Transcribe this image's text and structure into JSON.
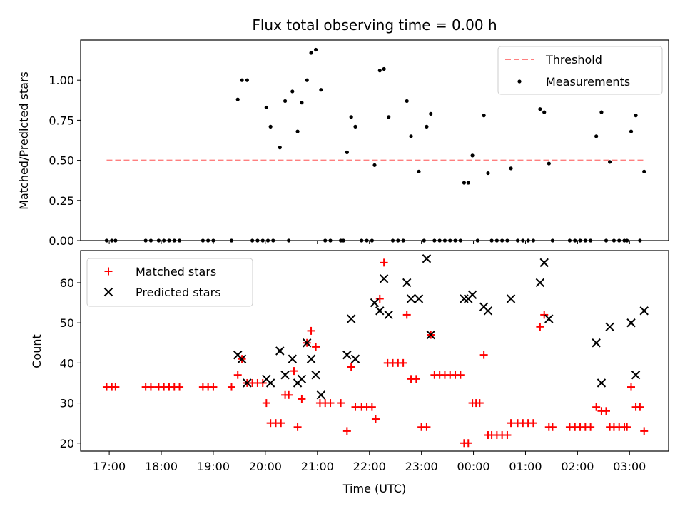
{
  "title": "Flux total observing time = 0.00 h",
  "top_ylabel": "Matched/Predicted stars",
  "bottom_ylabel": "Count",
  "xlabel": "Time (UTC)",
  "legend_top": {
    "threshold": "Threshold",
    "measurements": "Measurements"
  },
  "legend_bottom": {
    "matched": "Matched stars",
    "predicted": "Predicted stars"
  },
  "colors": {
    "threshold": "#ff7f7f",
    "measurements": "#000000",
    "matched": "#ff0000",
    "predicted": "#000000"
  },
  "chart_data": [
    {
      "type": "scatter",
      "panel": "top",
      "x_unit": "hours after 17:00 UTC",
      "xlim": [
        -0.55,
        10.75
      ],
      "ylim": [
        0,
        1.25
      ],
      "x_ticks": [
        0,
        1,
        2,
        3,
        4,
        5,
        6,
        7,
        8,
        9,
        10
      ],
      "x_tick_labels": [
        "17:00",
        "18:00",
        "19:00",
        "20:00",
        "21:00",
        "22:00",
        "23:00",
        "00:00",
        "01:00",
        "02:00",
        "03:00"
      ],
      "y_ticks": [
        0,
        0.25,
        0.5,
        0.75,
        1.0
      ],
      "y_tick_labels": [
        "0.00",
        "0.25",
        "0.50",
        "0.75",
        "1.00"
      ],
      "threshold": {
        "y": 0.5,
        "x_range": [
          -0.05,
          10.27
        ]
      },
      "series": [
        {
          "name": "Measurements",
          "points": [
            [
              -0.05,
              0
            ],
            [
              0.05,
              0
            ],
            [
              0.12,
              0
            ],
            [
              0.7,
              0
            ],
            [
              0.8,
              0
            ],
            [
              0.95,
              0
            ],
            [
              1.05,
              0
            ],
            [
              1.15,
              0
            ],
            [
              1.25,
              0
            ],
            [
              1.35,
              0
            ],
            [
              1.8,
              0
            ],
            [
              1.9,
              0
            ],
            [
              2.0,
              0
            ],
            [
              2.35,
              0
            ],
            [
              2.47,
              0.88
            ],
            [
              2.55,
              1.0
            ],
            [
              2.65,
              1.0
            ],
            [
              2.75,
              0
            ],
            [
              2.85,
              0
            ],
            [
              2.95,
              0
            ],
            [
              3.05,
              0
            ],
            [
              3.15,
              0
            ],
            [
              3.02,
              0.83
            ],
            [
              3.1,
              0.71
            ],
            [
              3.28,
              0.58
            ],
            [
              3.38,
              0.87
            ],
            [
              3.45,
              0
            ],
            [
              3.52,
              0.93
            ],
            [
              3.62,
              0.68
            ],
            [
              3.7,
              0.86
            ],
            [
              3.8,
              1.0
            ],
            [
              3.88,
              1.17
            ],
            [
              3.97,
              1.19
            ],
            [
              4.07,
              0.94
            ],
            [
              4.15,
              0
            ],
            [
              4.25,
              0
            ],
            [
              4.45,
              0
            ],
            [
              4.5,
              0
            ],
            [
              4.57,
              0.55
            ],
            [
              4.65,
              0.77
            ],
            [
              4.73,
              0.71
            ],
            [
              4.85,
              0
            ],
            [
              4.95,
              0
            ],
            [
              5.05,
              0
            ],
            [
              5.1,
              0.47
            ],
            [
              5.2,
              1.06
            ],
            [
              5.28,
              1.07
            ],
            [
              5.37,
              0.77
            ],
            [
              5.45,
              0
            ],
            [
              5.55,
              0
            ],
            [
              5.65,
              0
            ],
            [
              5.72,
              0.87
            ],
            [
              5.8,
              0.65
            ],
            [
              5.95,
              0.43
            ],
            [
              6.05,
              0
            ],
            [
              6.1,
              0.71
            ],
            [
              6.18,
              0.79
            ],
            [
              6.25,
              0
            ],
            [
              6.35,
              0
            ],
            [
              6.45,
              0
            ],
            [
              6.55,
              0
            ],
            [
              6.65,
              0
            ],
            [
              6.75,
              0
            ],
            [
              6.82,
              0.36
            ],
            [
              6.9,
              0.36
            ],
            [
              6.98,
              0.53
            ],
            [
              7.08,
              0
            ],
            [
              7.2,
              0.78
            ],
            [
              7.28,
              0.42
            ],
            [
              7.35,
              0
            ],
            [
              7.45,
              0
            ],
            [
              7.55,
              0
            ],
            [
              7.65,
              0
            ],
            [
              7.72,
              0.45
            ],
            [
              7.85,
              0
            ],
            [
              7.95,
              0
            ],
            [
              8.05,
              0
            ],
            [
              8.15,
              0
            ],
            [
              8.28,
              0.82
            ],
            [
              8.36,
              0.8
            ],
            [
              8.45,
              0.48
            ],
            [
              8.52,
              0
            ],
            [
              8.85,
              0
            ],
            [
              8.95,
              0
            ],
            [
              9.05,
              0
            ],
            [
              9.15,
              0
            ],
            [
              9.25,
              0
            ],
            [
              9.36,
              0.65
            ],
            [
              9.46,
              0.8
            ],
            [
              9.62,
              0.49
            ],
            [
              9.55,
              0
            ],
            [
              9.7,
              0
            ],
            [
              9.8,
              0
            ],
            [
              9.9,
              0
            ],
            [
              9.95,
              0
            ],
            [
              10.03,
              0.68
            ],
            [
              10.12,
              0.78
            ],
            [
              10.2,
              0
            ],
            [
              10.28,
              0.43
            ]
          ]
        }
      ]
    },
    {
      "type": "scatter",
      "panel": "bottom",
      "x_unit": "hours after 17:00 UTC",
      "xlim": [
        -0.55,
        10.75
      ],
      "ylim": [
        18,
        68
      ],
      "x_ticks": [
        0,
        1,
        2,
        3,
        4,
        5,
        6,
        7,
        8,
        9,
        10
      ],
      "x_tick_labels": [
        "17:00",
        "18:00",
        "19:00",
        "20:00",
        "21:00",
        "22:00",
        "23:00",
        "00:00",
        "01:00",
        "02:00",
        "03:00"
      ],
      "y_ticks": [
        20,
        30,
        40,
        50,
        60
      ],
      "y_tick_labels": [
        "20",
        "30",
        "40",
        "50",
        "60"
      ],
      "series": [
        {
          "name": "Matched stars",
          "marker": "plus",
          "points": [
            [
              -0.05,
              34
            ],
            [
              0.05,
              34
            ],
            [
              0.12,
              34
            ],
            [
              0.7,
              34
            ],
            [
              0.8,
              34
            ],
            [
              0.95,
              34
            ],
            [
              1.05,
              34
            ],
            [
              1.15,
              34
            ],
            [
              1.25,
              34
            ],
            [
              1.35,
              34
            ],
            [
              1.8,
              34
            ],
            [
              1.9,
              34
            ],
            [
              2.0,
              34
            ],
            [
              2.35,
              34
            ],
            [
              2.47,
              37
            ],
            [
              2.55,
              41
            ],
            [
              2.65,
              35
            ],
            [
              2.75,
              35
            ],
            [
              2.85,
              35
            ],
            [
              2.95,
              35
            ],
            [
              3.02,
              30
            ],
            [
              3.1,
              25
            ],
            [
              3.2,
              25
            ],
            [
              3.3,
              25
            ],
            [
              3.38,
              32
            ],
            [
              3.45,
              32
            ],
            [
              3.55,
              38
            ],
            [
              3.62,
              24
            ],
            [
              3.7,
              31
            ],
            [
              3.8,
              45
            ],
            [
              3.88,
              48
            ],
            [
              3.97,
              44
            ],
            [
              4.05,
              30
            ],
            [
              4.15,
              30
            ],
            [
              4.25,
              30
            ],
            [
              4.45,
              30
            ],
            [
              4.57,
              23
            ],
            [
              4.65,
              39
            ],
            [
              4.73,
              29
            ],
            [
              4.85,
              29
            ],
            [
              4.95,
              29
            ],
            [
              5.05,
              29
            ],
            [
              5.12,
              26
            ],
            [
              5.2,
              56
            ],
            [
              5.28,
              65
            ],
            [
              5.35,
              40
            ],
            [
              5.45,
              40
            ],
            [
              5.55,
              40
            ],
            [
              5.65,
              40
            ],
            [
              5.72,
              52
            ],
            [
              5.8,
              36
            ],
            [
              5.9,
              36
            ],
            [
              6.0,
              24
            ],
            [
              6.1,
              24
            ],
            [
              6.18,
              47
            ],
            [
              6.25,
              37
            ],
            [
              6.35,
              37
            ],
            [
              6.45,
              37
            ],
            [
              6.55,
              37
            ],
            [
              6.65,
              37
            ],
            [
              6.75,
              37
            ],
            [
              6.82,
              20
            ],
            [
              6.9,
              20
            ],
            [
              6.98,
              30
            ],
            [
              7.05,
              30
            ],
            [
              7.12,
              30
            ],
            [
              7.2,
              42
            ],
            [
              7.28,
              22
            ],
            [
              7.35,
              22
            ],
            [
              7.45,
              22
            ],
            [
              7.55,
              22
            ],
            [
              7.65,
              22
            ],
            [
              7.72,
              25
            ],
            [
              7.85,
              25
            ],
            [
              7.95,
              25
            ],
            [
              8.05,
              25
            ],
            [
              8.15,
              25
            ],
            [
              8.28,
              49
            ],
            [
              8.36,
              52
            ],
            [
              8.45,
              24
            ],
            [
              8.52,
              24
            ],
            [
              8.85,
              24
            ],
            [
              8.95,
              24
            ],
            [
              9.05,
              24
            ],
            [
              9.15,
              24
            ],
            [
              9.25,
              24
            ],
            [
              9.36,
              29
            ],
            [
              9.46,
              28
            ],
            [
              9.55,
              28
            ],
            [
              9.62,
              24
            ],
            [
              9.7,
              24
            ],
            [
              9.8,
              24
            ],
            [
              9.9,
              24
            ],
            [
              9.95,
              24
            ],
            [
              10.03,
              34
            ],
            [
              10.12,
              29
            ],
            [
              10.2,
              29
            ],
            [
              10.28,
              23
            ]
          ]
        },
        {
          "name": "Predicted stars",
          "marker": "x",
          "points": [
            [
              2.47,
              42
            ],
            [
              2.55,
              41
            ],
            [
              2.65,
              35
            ],
            [
              3.02,
              36
            ],
            [
              3.1,
              35
            ],
            [
              3.28,
              43
            ],
            [
              3.38,
              37
            ],
            [
              3.52,
              41
            ],
            [
              3.62,
              35
            ],
            [
              3.7,
              36
            ],
            [
              3.8,
              45
            ],
            [
              3.88,
              41
            ],
            [
              3.97,
              37
            ],
            [
              4.07,
              32
            ],
            [
              4.57,
              42
            ],
            [
              4.65,
              51
            ],
            [
              4.73,
              41
            ],
            [
              5.1,
              55
            ],
            [
              5.2,
              53
            ],
            [
              5.28,
              61
            ],
            [
              5.37,
              52
            ],
            [
              5.72,
              60
            ],
            [
              5.8,
              56
            ],
            [
              5.95,
              56
            ],
            [
              6.1,
              66
            ],
            [
              6.18,
              47
            ],
            [
              6.82,
              56
            ],
            [
              6.9,
              56
            ],
            [
              6.98,
              57
            ],
            [
              7.2,
              54
            ],
            [
              7.28,
              53
            ],
            [
              7.72,
              56
            ],
            [
              8.28,
              60
            ],
            [
              8.36,
              65
            ],
            [
              8.45,
              51
            ],
            [
              9.36,
              45
            ],
            [
              9.46,
              35
            ],
            [
              9.62,
              49
            ],
            [
              10.03,
              50
            ],
            [
              10.12,
              37
            ],
            [
              10.28,
              53
            ]
          ]
        }
      ]
    }
  ]
}
